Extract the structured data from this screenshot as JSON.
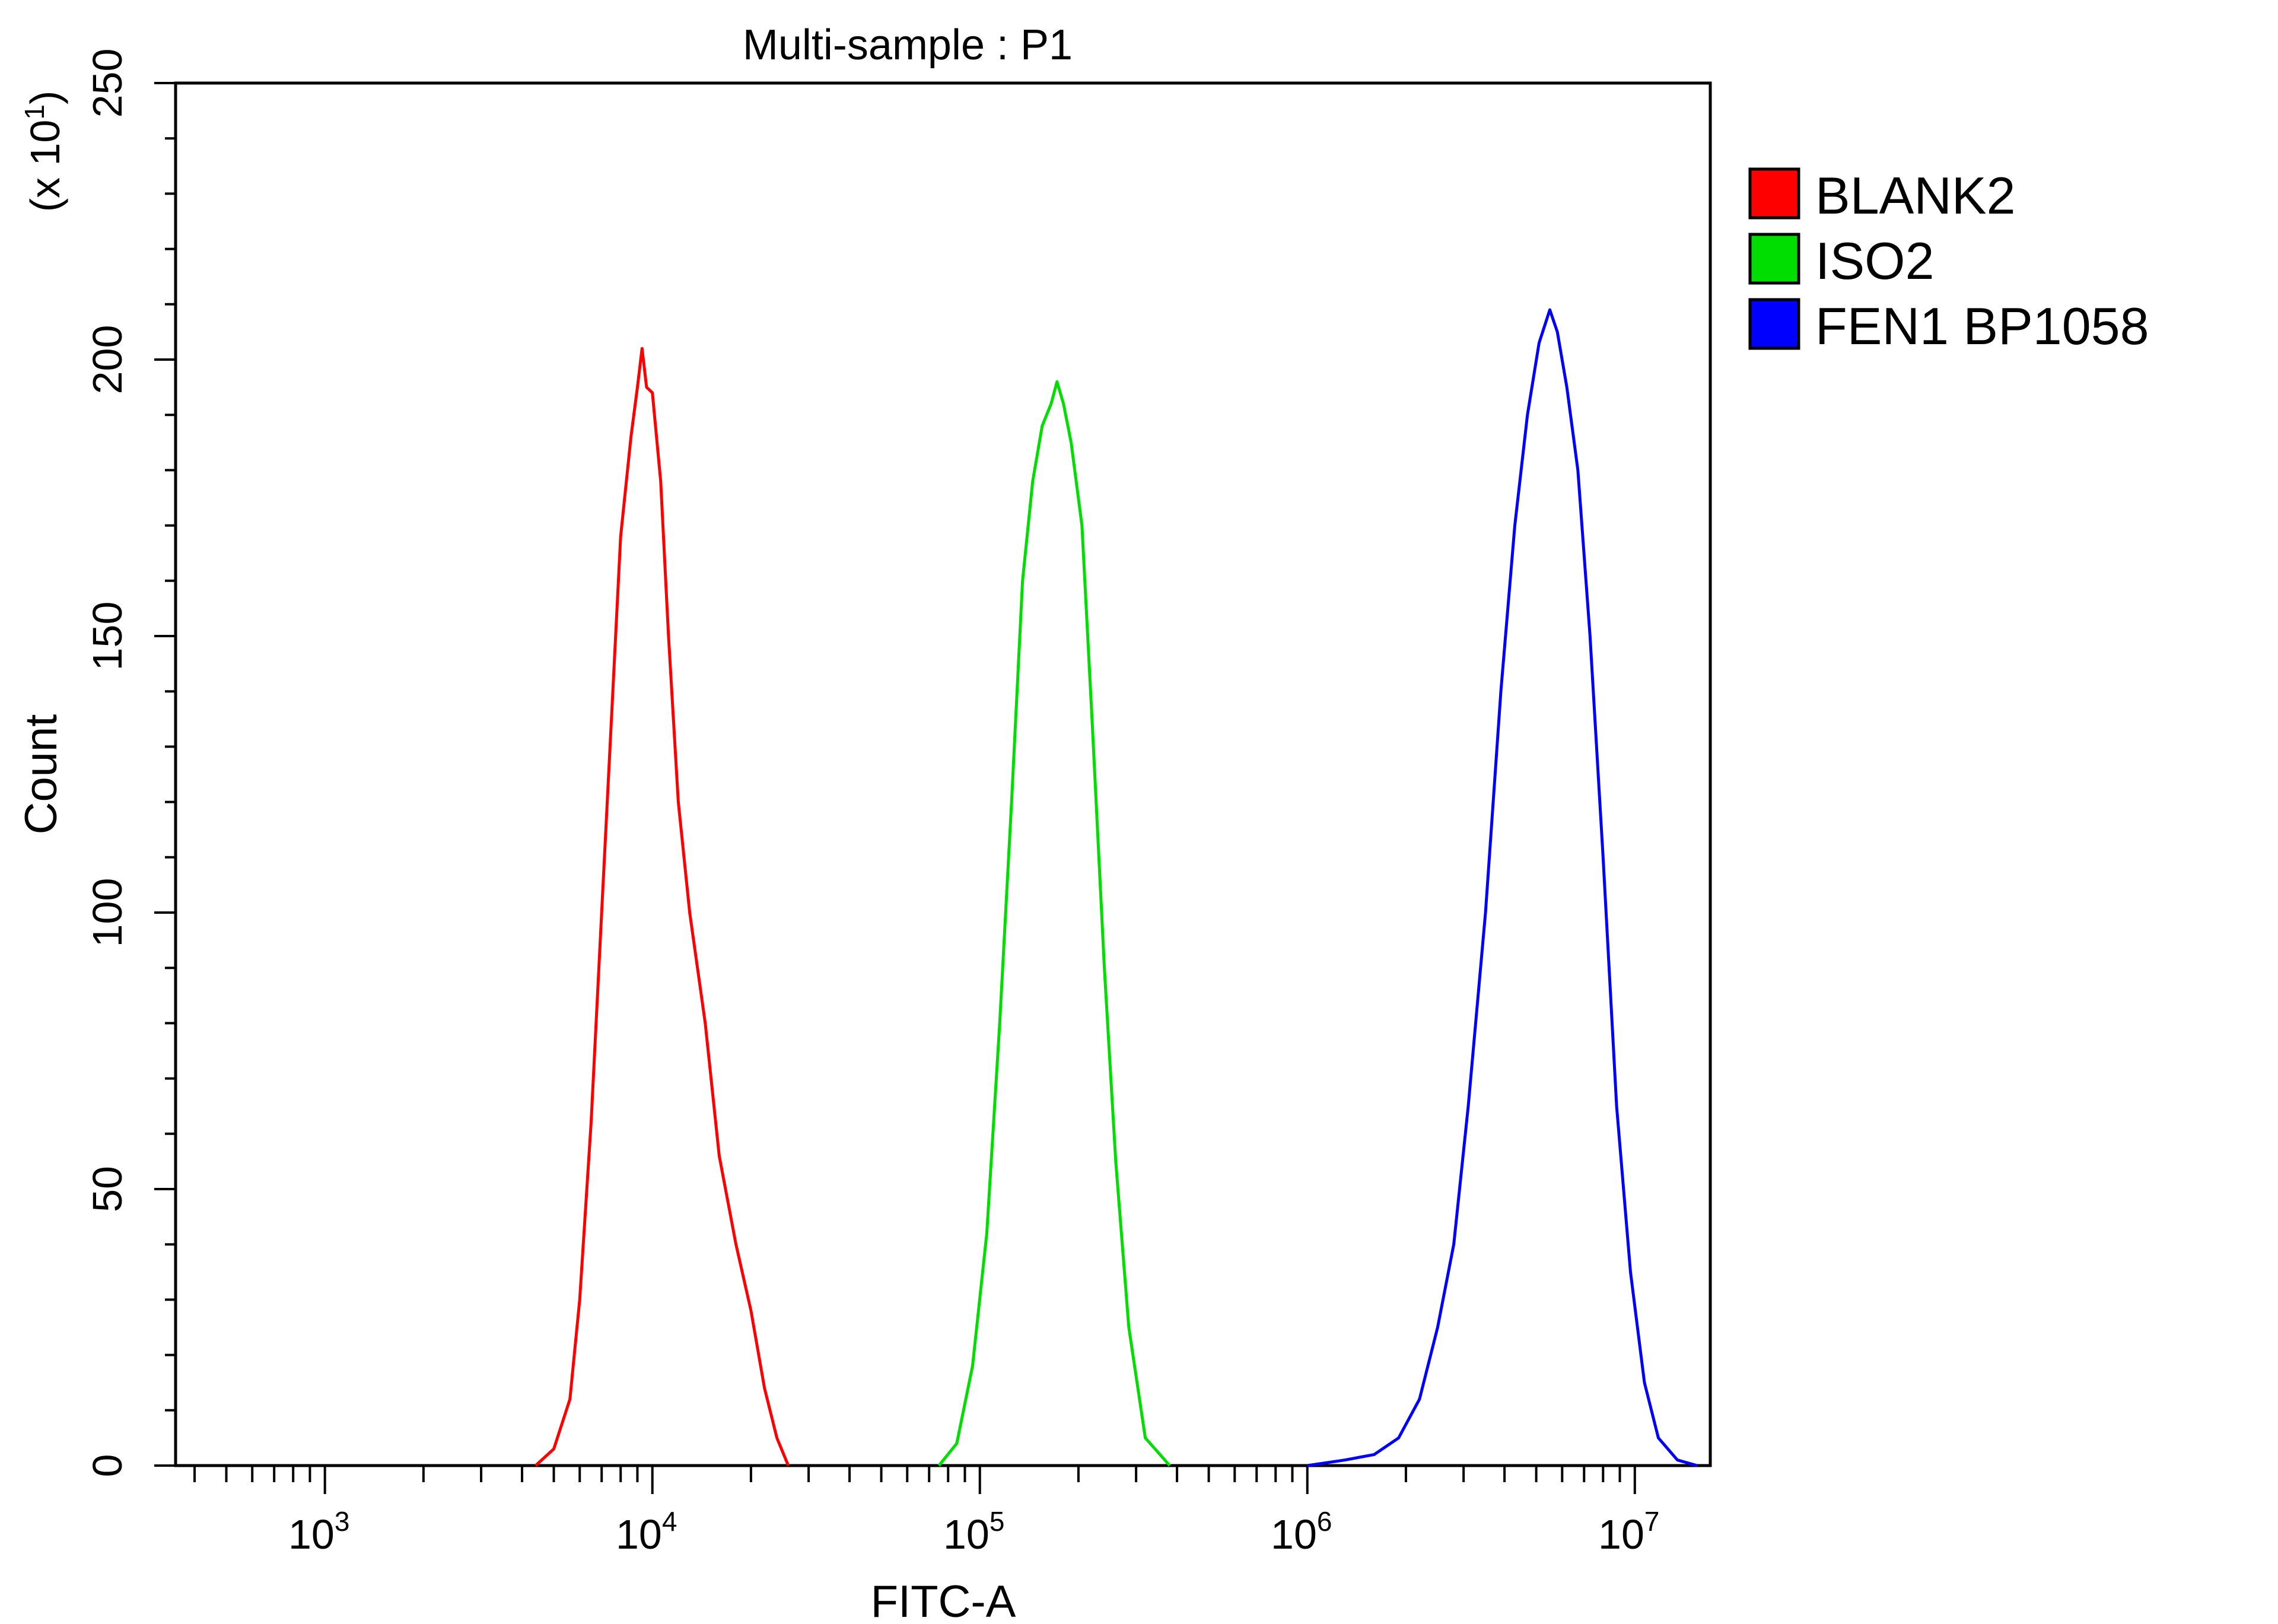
{
  "chart_data": {
    "type": "line",
    "title": "Multi-sample : P1",
    "xlabel": "FITC-A",
    "ylabel": "Count",
    "y_multiplier": "(x 10",
    "y_multiplier_exp": "1",
    "y_multiplier_close": ")",
    "x_scale": "log",
    "xlim": [
      350,
      17000000
    ],
    "ylim": [
      0,
      250
    ],
    "x_ticks": [
      {
        "base": "10",
        "exp": "3",
        "value": 1000
      },
      {
        "base": "10",
        "exp": "4",
        "value": 10000
      },
      {
        "base": "10",
        "exp": "5",
        "value": 100000
      },
      {
        "base": "10",
        "exp": "6",
        "value": 1000000
      },
      {
        "base": "10",
        "exp": "7",
        "value": 10000000
      }
    ],
    "y_ticks": [
      "0",
      "50",
      "100",
      "150",
      "200",
      "250"
    ],
    "grid": false,
    "legend_position": "right-top",
    "series": [
      {
        "name": "BLANK2",
        "color": "#ff0000",
        "points": [
          [
            4400,
            0
          ],
          [
            5000,
            3
          ],
          [
            5600,
            12
          ],
          [
            6000,
            30
          ],
          [
            6500,
            62
          ],
          [
            7000,
            100
          ],
          [
            7500,
            135
          ],
          [
            8000,
            168
          ],
          [
            8600,
            186
          ],
          [
            9000,
            195
          ],
          [
            9300,
            202
          ],
          [
            9600,
            195
          ],
          [
            10000,
            194
          ],
          [
            10600,
            178
          ],
          [
            11200,
            150
          ],
          [
            12000,
            120
          ],
          [
            13000,
            100
          ],
          [
            14500,
            80
          ],
          [
            16000,
            56
          ],
          [
            18000,
            40
          ],
          [
            20000,
            28
          ],
          [
            22000,
            14
          ],
          [
            24000,
            5
          ],
          [
            26000,
            0
          ]
        ]
      },
      {
        "name": "ISO2",
        "color": "#00dd00",
        "points": [
          [
            75000,
            0
          ],
          [
            85000,
            4
          ],
          [
            95000,
            18
          ],
          [
            105000,
            42
          ],
          [
            115000,
            80
          ],
          [
            125000,
            120
          ],
          [
            135000,
            160
          ],
          [
            145000,
            178
          ],
          [
            155000,
            188
          ],
          [
            165000,
            192
          ],
          [
            172000,
            196
          ],
          [
            180000,
            192
          ],
          [
            190000,
            185
          ],
          [
            205000,
            170
          ],
          [
            220000,
            135
          ],
          [
            240000,
            90
          ],
          [
            260000,
            55
          ],
          [
            285000,
            25
          ],
          [
            320000,
            5
          ],
          [
            380000,
            0
          ]
        ]
      },
      {
        "name": "FEN1 BP1058",
        "color": "#0000ff",
        "points": [
          [
            1000000,
            0
          ],
          [
            1300000,
            1
          ],
          [
            1600000,
            2
          ],
          [
            1900000,
            5
          ],
          [
            2200000,
            12
          ],
          [
            2500000,
            25
          ],
          [
            2800000,
            40
          ],
          [
            3100000,
            65
          ],
          [
            3500000,
            100
          ],
          [
            3900000,
            140
          ],
          [
            4300000,
            170
          ],
          [
            4700000,
            190
          ],
          [
            5100000,
            203
          ],
          [
            5500000,
            209
          ],
          [
            5800000,
            205
          ],
          [
            6200000,
            195
          ],
          [
            6700000,
            180
          ],
          [
            7300000,
            150
          ],
          [
            8000000,
            110
          ],
          [
            8800000,
            65
          ],
          [
            9700000,
            35
          ],
          [
            10700000,
            15
          ],
          [
            11800000,
            5
          ],
          [
            13500000,
            1
          ],
          [
            15500000,
            0
          ]
        ]
      }
    ]
  }
}
